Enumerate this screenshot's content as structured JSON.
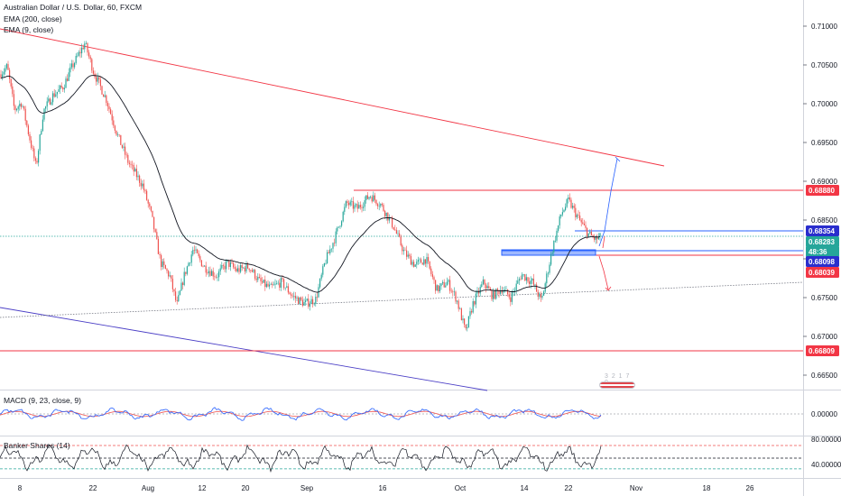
{
  "header": {
    "symbol_title": "Australian Dollar / U.S. Dollar, 60, FXCM",
    "indicator_1": "EMA (200, close)",
    "indicator_2": "EMA (9, close)"
  },
  "price_axis": {
    "ticks": [
      "0.71000",
      "0.70500",
      "0.70000",
      "0.69500",
      "0.69000",
      "0.68500",
      "0.68000",
      "0.67500",
      "0.67000",
      "0.66500"
    ]
  },
  "price_tags": [
    {
      "value": "0.68880",
      "color": "#f23645"
    },
    {
      "value": "0.68354",
      "color": "#2a2ecd"
    },
    {
      "value": "0.68283",
      "color": "#26a69a"
    },
    {
      "value": "48:36",
      "color": "#26a69a"
    },
    {
      "value": "0.68098",
      "color": "#2a2ecd"
    },
    {
      "value": "0.68039",
      "color": "#f23645"
    },
    {
      "value": "0.66809",
      "color": "#f23645"
    }
  ],
  "macd_pane": {
    "title": "MACD (9, 23, close, 9)",
    "tick": "0.00000"
  },
  "banker_pane": {
    "title": "Banker Shares (14)",
    "ticks": [
      "80.00000",
      "40.00000"
    ]
  },
  "time_axis": {
    "labels": [
      "8",
      "22",
      "Aug",
      "12",
      "20",
      "Sep",
      "16",
      "Oct",
      "14",
      "22",
      "Nov",
      "18",
      "26"
    ]
  },
  "watermark": {
    "text": "3 2 1 7 0"
  },
  "colors": {
    "up": "#26a69a",
    "down": "#ef5350",
    "resistance": "#f23645",
    "support_channel": "#4b3fc6",
    "ema200": "#131722",
    "zone": "#2962ff"
  }
}
